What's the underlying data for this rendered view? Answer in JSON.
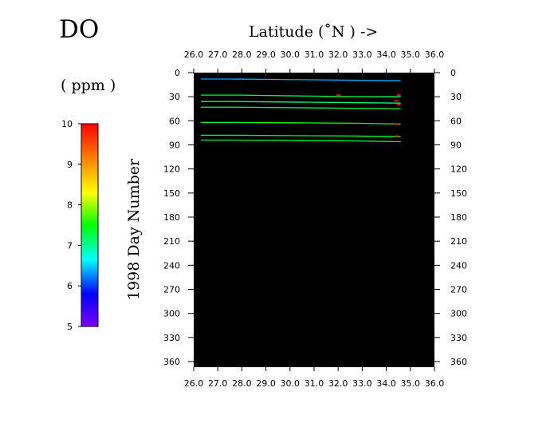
{
  "chart_data": {
    "type": "heatmap",
    "title": "DO",
    "units": "( ppm )",
    "xlabel": "Latitude  (˚N )  ->",
    "ylabel": "1998   Day  Number",
    "xlim": [
      26.0,
      36.0
    ],
    "ylim": [
      0,
      365
    ],
    "y_inverted": true,
    "x_ticks": [
      "26.0",
      "27.0",
      "28.0",
      "29.0",
      "30.0",
      "31.0",
      "32.0",
      "33.0",
      "34.0",
      "35.0",
      "36.0"
    ],
    "y_ticks": [
      "0",
      "30",
      "60",
      "90",
      "120",
      "150",
      "180",
      "210",
      "240",
      "270",
      "300",
      "330",
      "360"
    ],
    "colorbar": {
      "min": 5,
      "max": 10,
      "ticks": [
        "5",
        "6",
        "7",
        "8",
        "9",
        "10"
      ],
      "colors": [
        "#8000ff",
        "#0000ff",
        "#00ffff",
        "#00ff00",
        "#ffff00",
        "#ff8000",
        "#ff0000"
      ]
    },
    "background_color": "#000000",
    "transects": [
      {
        "day": 8,
        "segments": [
          {
            "lat_start": 26.3,
            "lat_end": 27.7,
            "value": 6.3,
            "day_end": 8
          },
          {
            "lat_start": 27.7,
            "lat_end": 34.6,
            "value": 6.4,
            "day_end": 10
          }
        ]
      },
      {
        "day": 28,
        "segments": [
          {
            "lat_start": 26.3,
            "lat_end": 27.9,
            "value": 7.4,
            "day_end": 28
          },
          {
            "lat_start": 27.9,
            "lat_end": 32.7,
            "value": 7.3,
            "day_end": 30
          },
          {
            "lat_start": 32.7,
            "lat_end": 34.6,
            "value": 7.2,
            "day_end": 30
          }
        ]
      },
      {
        "day": 36,
        "segments": [
          {
            "lat_start": 26.3,
            "lat_end": 27.7,
            "value": 7.2,
            "day_end": 36
          },
          {
            "lat_start": 27.7,
            "lat_end": 34.6,
            "value": 7.1,
            "day_end": 38
          }
        ]
      },
      {
        "day": 43,
        "segments": [
          {
            "lat_start": 26.3,
            "lat_end": 27.7,
            "value": 7.2,
            "day_end": 43
          },
          {
            "lat_start": 27.7,
            "lat_end": 34.6,
            "value": 7.3,
            "day_end": 45
          }
        ]
      },
      {
        "day": 62,
        "segments": [
          {
            "lat_start": 26.3,
            "lat_end": 27.7,
            "value": 7.3,
            "day_end": 62
          },
          {
            "lat_start": 27.7,
            "lat_end": 32.7,
            "value": 7.5,
            "day_end": 63
          },
          {
            "lat_start": 32.7,
            "lat_end": 34.6,
            "value": 7.4,
            "day_end": 64
          }
        ]
      },
      {
        "day": 78,
        "segments": [
          {
            "lat_start": 26.3,
            "lat_end": 27.7,
            "value": 7.3,
            "day_end": 78
          },
          {
            "lat_start": 27.7,
            "lat_end": 32.7,
            "value": 7.4,
            "day_end": 79
          },
          {
            "lat_start": 32.7,
            "lat_end": 34.6,
            "value": 7.3,
            "day_end": 80
          }
        ]
      },
      {
        "day": 84,
        "segments": [
          {
            "lat_start": 26.3,
            "lat_end": 27.7,
            "value": 7.3,
            "day_end": 84
          },
          {
            "lat_start": 27.7,
            "lat_end": 32.7,
            "value": 7.4,
            "day_end": 85
          },
          {
            "lat_start": 32.7,
            "lat_end": 34.6,
            "value": 7.3,
            "day_end": 86
          }
        ]
      }
    ],
    "point_marks": [
      {
        "lat": 32.0,
        "day": 28,
        "value": 10
      },
      {
        "lat": 34.5,
        "day": 28,
        "value": 10
      },
      {
        "lat": 34.4,
        "day": 35,
        "value": 10
      },
      {
        "lat": 34.5,
        "day": 40,
        "value": 10
      },
      {
        "lat": 34.4,
        "day": 64,
        "value": 9.8
      },
      {
        "lat": 34.4,
        "day": 79,
        "value": 10
      }
    ]
  }
}
